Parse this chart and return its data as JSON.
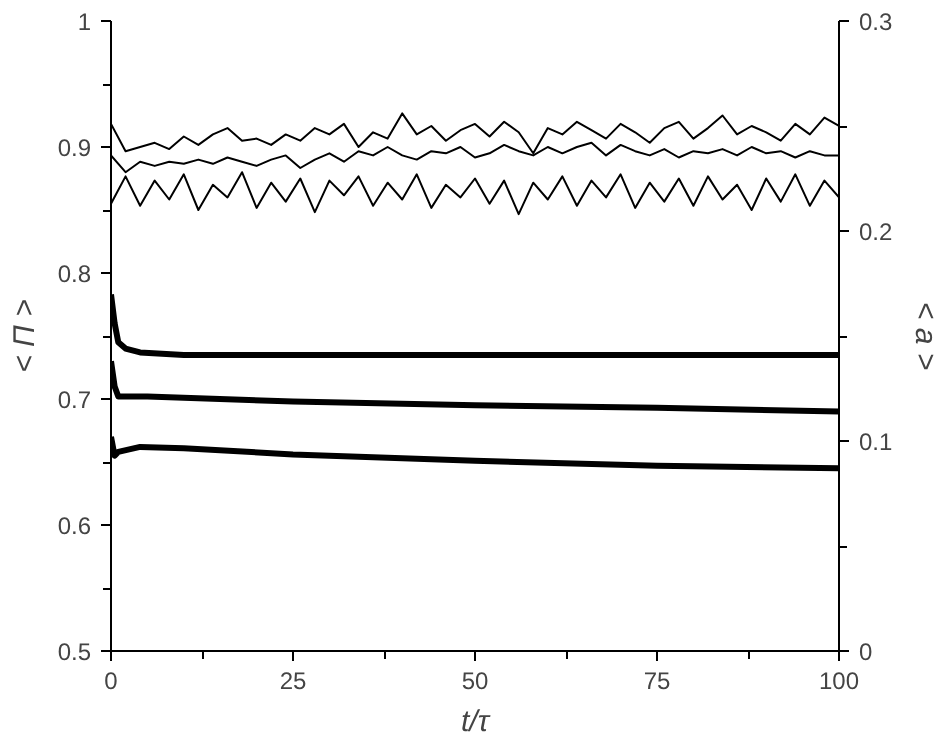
{
  "chart_data": {
    "type": "line",
    "xlabel": "t/τ",
    "ylabel": "< Π >",
    "y2label": "< a >",
    "xlim": [
      0,
      100
    ],
    "xticks": [
      0,
      {
        "value": 12.5,
        "label": null
      },
      25,
      {
        "value": 37.5,
        "label": null
      },
      50,
      {
        "value": 62.5,
        "label": null
      },
      75,
      {
        "value": 87.5,
        "label": null
      },
      100
    ],
    "ylim": [
      0.5,
      1
    ],
    "yticks": [
      0.5,
      {
        "value": 0.55,
        "label": null
      },
      0.6,
      {
        "value": 0.65,
        "label": null
      },
      0.7,
      {
        "value": 0.75,
        "label": null
      },
      0.8,
      {
        "value": 0.85,
        "label": null
      },
      0.9,
      {
        "value": 0.95,
        "label": null
      },
      1
    ],
    "y2lim": [
      0,
      0.3
    ],
    "y2ticks": [
      0,
      {
        "value": 0.05,
        "label": null
      },
      0.1,
      {
        "value": 0.15,
        "label": null
      },
      0.2,
      {
        "value": 0.25,
        "label": null
      },
      0.3
    ],
    "grid": false,
    "marker": "none",
    "line_style": "solid",
    "series": [
      {
        "color": "#000000",
        "x": [
          0,
          0.5,
          1,
          2,
          4,
          10,
          25,
          50,
          75,
          100
        ],
        "values": [
          0.783,
          0.76,
          0.745,
          0.74,
          0.737,
          0.735,
          0.735,
          0.735,
          0.735,
          0.735
        ]
      },
      {
        "color": "#000000",
        "x": [
          0,
          0.5,
          1,
          5,
          25,
          50,
          75,
          100
        ],
        "values": [
          0.73,
          0.71,
          0.702,
          0.702,
          0.698,
          0.695,
          0.693,
          0.69
        ]
      },
      {
        "color": "#000000",
        "x": [
          0,
          0.5,
          1,
          4,
          10,
          25,
          50,
          75,
          100
        ],
        "values": [
          0.67,
          0.655,
          0.658,
          0.662,
          0.661,
          0.656,
          0.651,
          0.647,
          0.645
        ]
      },
      {
        "color": "#000000",
        "axis": "y2",
        "x": [
          0,
          2,
          4,
          6,
          8,
          10,
          12,
          14,
          16,
          18,
          20,
          22,
          24,
          26,
          28,
          30,
          32,
          34,
          36,
          38,
          40,
          42,
          44,
          46,
          48,
          50,
          52,
          54,
          56,
          58,
          60,
          62,
          64,
          66,
          68,
          70,
          72,
          74,
          76,
          78,
          80,
          82,
          84,
          86,
          88,
          90,
          92,
          94,
          96,
          98,
          100
        ],
        "values": [
          0.251,
          0.238,
          0.24,
          0.242,
          0.239,
          0.245,
          0.241,
          0.246,
          0.249,
          0.243,
          0.244,
          0.241,
          0.246,
          0.243,
          0.249,
          0.246,
          0.251,
          0.24,
          0.247,
          0.244,
          0.256,
          0.246,
          0.25,
          0.243,
          0.248,
          0.251,
          0.245,
          0.252,
          0.247,
          0.237,
          0.249,
          0.246,
          0.252,
          0.248,
          0.244,
          0.251,
          0.247,
          0.242,
          0.249,
          0.252,
          0.244,
          0.249,
          0.255,
          0.246,
          0.25,
          0.247,
          0.243,
          0.251,
          0.246,
          0.254,
          0.25
        ]
      },
      {
        "color": "#000000",
        "axis": "y2",
        "x": [
          0,
          2,
          4,
          6,
          8,
          10,
          12,
          14,
          16,
          18,
          20,
          22,
          24,
          26,
          28,
          30,
          32,
          34,
          36,
          38,
          40,
          42,
          44,
          46,
          48,
          50,
          52,
          54,
          56,
          58,
          60,
          62,
          64,
          66,
          68,
          70,
          72,
          74,
          76,
          78,
          80,
          82,
          84,
          86,
          88,
          90,
          92,
          94,
          96,
          98,
          100
        ],
        "values": [
          0.236,
          0.228,
          0.233,
          0.231,
          0.233,
          0.232,
          0.234,
          0.232,
          0.235,
          0.233,
          0.231,
          0.234,
          0.236,
          0.23,
          0.234,
          0.237,
          0.233,
          0.238,
          0.236,
          0.24,
          0.236,
          0.234,
          0.238,
          0.237,
          0.24,
          0.235,
          0.237,
          0.241,
          0.238,
          0.236,
          0.24,
          0.237,
          0.24,
          0.242,
          0.236,
          0.241,
          0.238,
          0.236,
          0.239,
          0.235,
          0.238,
          0.237,
          0.239,
          0.236,
          0.24,
          0.237,
          0.238,
          0.235,
          0.238,
          0.236,
          0.236
        ]
      },
      {
        "color": "#000000",
        "axis": "y2",
        "x": [
          0,
          2,
          4,
          6,
          8,
          10,
          12,
          14,
          16,
          18,
          20,
          22,
          24,
          26,
          28,
          30,
          32,
          34,
          36,
          38,
          40,
          42,
          44,
          46,
          48,
          50,
          52,
          54,
          56,
          58,
          60,
          62,
          64,
          66,
          68,
          70,
          72,
          74,
          76,
          78,
          80,
          82,
          84,
          86,
          88,
          90,
          92,
          94,
          96,
          98,
          100
        ],
        "values": [
          0.213,
          0.226,
          0.212,
          0.224,
          0.215,
          0.227,
          0.21,
          0.222,
          0.216,
          0.228,
          0.211,
          0.223,
          0.214,
          0.225,
          0.209,
          0.224,
          0.217,
          0.226,
          0.212,
          0.223,
          0.215,
          0.227,
          0.211,
          0.222,
          0.216,
          0.225,
          0.213,
          0.224,
          0.208,
          0.223,
          0.215,
          0.226,
          0.212,
          0.224,
          0.216,
          0.227,
          0.211,
          0.223,
          0.214,
          0.225,
          0.212,
          0.226,
          0.215,
          0.222,
          0.21,
          0.225,
          0.214,
          0.227,
          0.212,
          0.224,
          0.216
        ]
      }
    ]
  }
}
